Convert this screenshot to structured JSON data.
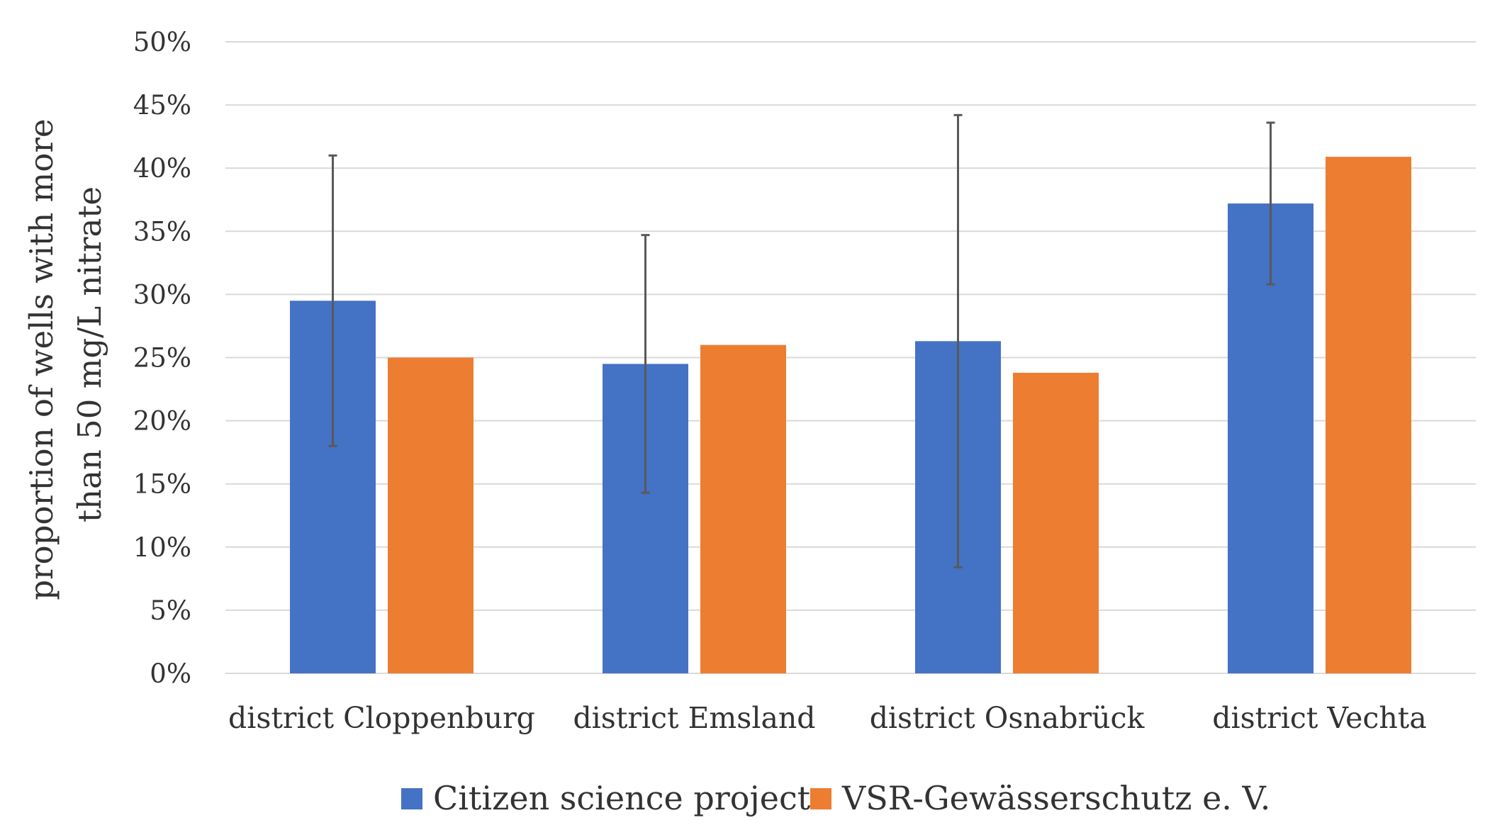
{
  "chart_data": {
    "type": "bar",
    "title": "",
    "xlabel": "",
    "ylabel_lines": [
      "proportion of wells with more",
      "than 50 mg/L nitrate"
    ],
    "categories": [
      "district Cloppenburg",
      "district Emsland",
      "district Osnabrück",
      "district Vechta"
    ],
    "ylim": [
      0,
      50
    ],
    "yticks": [
      0,
      5,
      10,
      15,
      20,
      25,
      30,
      35,
      40,
      45,
      50
    ],
    "ytick_labels": [
      "0%",
      "5%",
      "10%",
      "15%",
      "20%",
      "25%",
      "30%",
      "35%",
      "40%",
      "45%",
      "50%"
    ],
    "grid": true,
    "legend_position": "bottom",
    "series": [
      {
        "name": "Citizen science project",
        "color": "#4472C4",
        "values": [
          29.5,
          24.5,
          26.3,
          37.2
        ],
        "error_low": [
          18.0,
          14.3,
          8.4,
          30.8
        ],
        "error_high": [
          41.0,
          34.7,
          44.2,
          43.6
        ]
      },
      {
        "name": "VSR-Gewässerschutz e. V.",
        "color": "#ED7D31",
        "values": [
          25.0,
          26.0,
          23.8,
          40.9
        ]
      }
    ]
  }
}
